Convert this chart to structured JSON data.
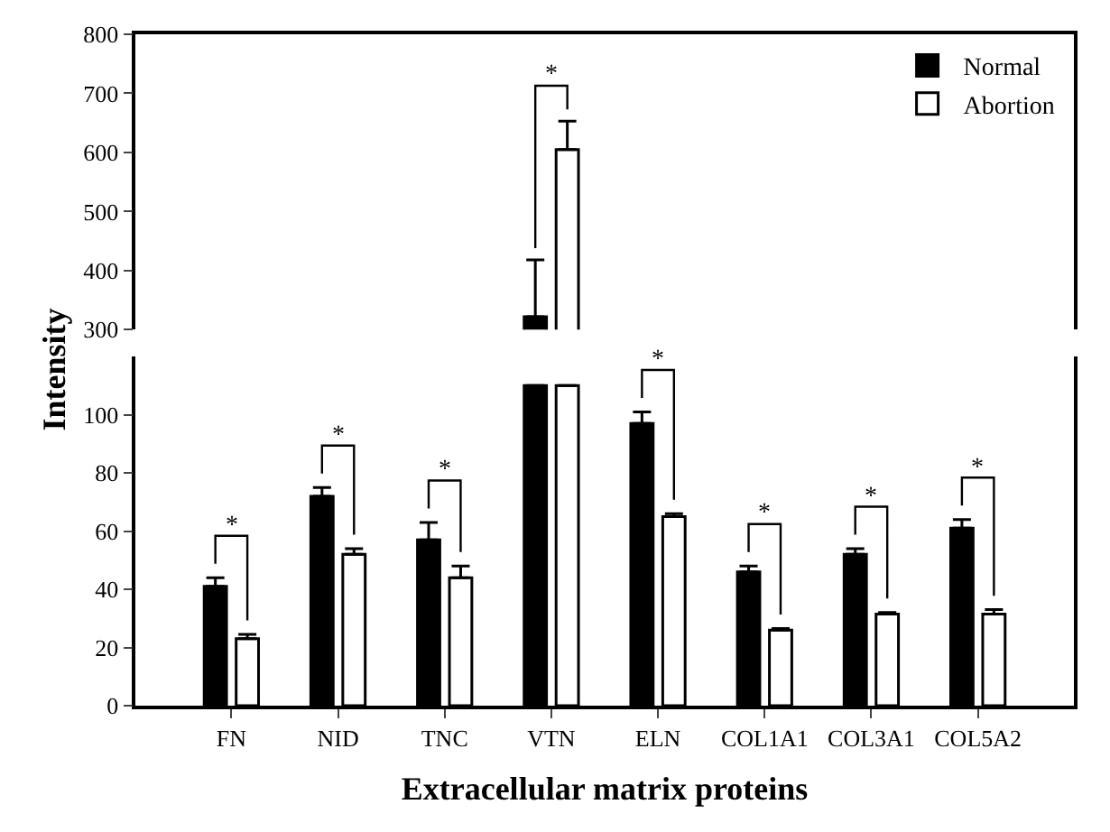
{
  "chart_data": [
    {
      "type": "bar",
      "categories": [
        null,
        null,
        null,
        null,
        null,
        null,
        null,
        null
      ],
      "series": [
        {
          "name": "Normal",
          "color": "#000000",
          "values": [
            null,
            null,
            null,
            322,
            null,
            null,
            null,
            null
          ],
          "errors": [
            null,
            null,
            null,
            96,
            null,
            null,
            null,
            null
          ]
        },
        {
          "name": "Abortion",
          "color": "#ffffff",
          "values": [
            null,
            null,
            null,
            605,
            null,
            null,
            null,
            null
          ],
          "errors": [
            null,
            null,
            null,
            48,
            null,
            null,
            null,
            null
          ]
        }
      ],
      "ylim": [
        300,
        800
      ],
      "yticks": [
        300,
        400,
        500,
        600,
        700,
        800
      ],
      "tick_labels": "y",
      "legend": "top right",
      "annotations": [
        "*"
      ]
    },
    {
      "type": "bar",
      "categories": [
        "FN",
        "NID",
        "TNC",
        "VTN",
        "ELN",
        "COL1A1",
        "COL3A1",
        "COL5A2"
      ],
      "xlabel": "Extracellular matrix proteins",
      "ylabel": "Intensity",
      "series": [
        {
          "color": "#000000",
          "values": [
            41,
            72,
            57,
            110,
            97,
            46,
            52,
            61
          ],
          "errors": [
            3,
            3,
            6,
            null,
            4,
            2,
            2,
            3
          ]
        },
        {
          "color": "#ffffff",
          "values": [
            23,
            52,
            44,
            110,
            65,
            26,
            31.5,
            31.5
          ],
          "errors": [
            1.5,
            2,
            4,
            null,
            1,
            0.5,
            0.5,
            1.5
          ]
        }
      ],
      "ylim": [
        0,
        120
      ],
      "yticks": [
        0,
        20,
        40,
        60,
        80,
        100
      ],
      "annotations": [
        "*",
        "*",
        "*",
        "*",
        "*",
        "*",
        "*"
      ]
    }
  ]
}
